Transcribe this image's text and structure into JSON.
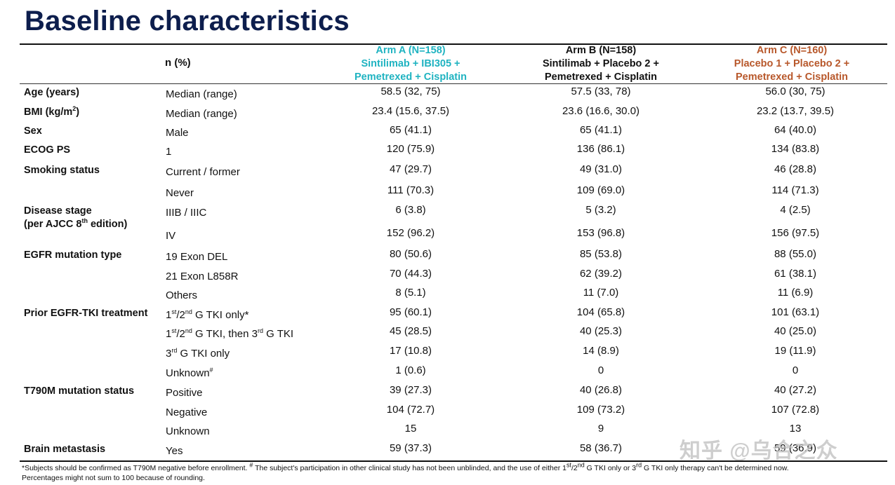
{
  "title": "Baseline characteristics",
  "header": {
    "n_pct": "n (%)",
    "arm_a": {
      "line1": "Arm A (N=158)",
      "line2": "Sintilimab + IBI305 +",
      "line3": "Pemetrexed + Cisplatin",
      "color": "#1fb3c1"
    },
    "arm_b": {
      "line1": "Arm B (N=158)",
      "line2": "Sintilimab + Placebo 2 +",
      "line3": "Pemetrexed + Cisplatin",
      "color": "#111111"
    },
    "arm_c": {
      "line1": "Arm C (N=160)",
      "line2": "Placebo 1 + Placebo 2 +",
      "line3": "Pemetrexed + Cisplatin",
      "color": "#b8582b"
    }
  },
  "rows": [
    {
      "label": "Age (years)",
      "sub": "Median (range)",
      "a": "58.5 (32, 75)",
      "b": "57.5 (33, 78)",
      "c": "56.0 (30, 75)"
    },
    {
      "label_pre": "BMI (kg/m",
      "label_sup": "2",
      "label_post": ")",
      "sub": "Median (range)",
      "a": "23.4 (15.6, 37.5)",
      "b": "23.6 (16.6, 30.0)",
      "c": "23.2 (13.7, 39.5)"
    },
    {
      "label": "Sex",
      "sub": "Male",
      "a": "65 (41.1)",
      "b": "65 (41.1)",
      "c": "64 (40.0)"
    },
    {
      "label": "ECOG PS",
      "sub": "1",
      "a": "120 (75.9)",
      "b": "136 (86.1)",
      "c": "134 (83.8)"
    },
    {
      "label": "Smoking status",
      "sub": "Current / former",
      "a": "47 (29.7)",
      "b": "49 (31.0)",
      "c": "46 (28.8)"
    },
    {
      "sub": "Never",
      "a": "111 (70.3)",
      "b": "109 (69.0)",
      "c": "114 (71.3)"
    },
    {
      "label": "Disease stage",
      "label2_pre": "(per AJCC 8",
      "label2_sup": "th",
      "label2_post": " edition)",
      "sub": "IIIB / IIIC",
      "a": "6 (3.8)",
      "b": "5 (3.2)",
      "c": "4 (2.5)"
    },
    {
      "sub": "IV",
      "a": "152 (96.2)",
      "b": "153 (96.8)",
      "c": "156 (97.5)"
    },
    {
      "label": "EGFR mutation type",
      "sub": "19 Exon DEL",
      "a": "80 (50.6)",
      "b": "85 (53.8)",
      "c": "88 (55.0)"
    },
    {
      "sub": "21 Exon L858R",
      "a": "70 (44.3)",
      "b": "62 (39.2)",
      "c": "61 (38.1)"
    },
    {
      "sub": "Others",
      "a": "8 (5.1)",
      "b": "11 (7.0)",
      "c": "11 (6.9)"
    },
    {
      "label": "Prior EGFR-TKI treatment",
      "sub_p1": "1",
      "sub_s1": "st",
      "sub_p2": "/2",
      "sub_s2": "nd",
      "sub_p3": " G TKI only*",
      "a": "95 (60.1)",
      "b": "104 (65.8)",
      "c": "101 (63.1)"
    },
    {
      "sub_p1": "1",
      "sub_s1": "st",
      "sub_p2": "/2",
      "sub_s2": "nd",
      "sub_p3": " G TKI, then 3",
      "sub_s3": "rd",
      "sub_p4": " G TKI",
      "a": "45 (28.5)",
      "b": "40 (25.3)",
      "c": "40 (25.0)"
    },
    {
      "sub_p1": "3",
      "sub_s1": "rd",
      "sub_p2": " G TKI only",
      "a": "17 (10.8)",
      "b": "14 (8.9)",
      "c": "19 (11.9)"
    },
    {
      "sub_p1": "Unknown",
      "sub_s1": "#",
      "a": "1 (0.6)",
      "b": "0",
      "c": "0"
    },
    {
      "label": "T790M mutation status",
      "sub": "Positive",
      "a": "39 (27.3)",
      "b": "40 (26.8)",
      "c": "40 (27.2)"
    },
    {
      "sub": "Negative",
      "a": "104 (72.7)",
      "b": "109 (73.2)",
      "c": "107 (72.8)"
    },
    {
      "sub": "Unknown",
      "a": "15",
      "b": "9",
      "c": "13"
    },
    {
      "label": "Brain metastasis",
      "sub": "Yes",
      "a": "59 (37.3)",
      "b": "58 (36.7)",
      "c": "59 (36.9)"
    }
  ],
  "footnote": {
    "p1": "*Subjects should be confirmed as T790M negative before enrollment. ",
    "s1": "#",
    "p2": " The subject's participation in other clinical study has not been unblinded, and the use of either 1",
    "s2": "st",
    "p3": "/2",
    "s3": "nd",
    "p4": " G TKI only or 3",
    "s4": "rd",
    "p5": " G TKI only therapy can't be determined now.",
    "line2": "Percentages might not sum to 100 because of rounding."
  },
  "watermark": "知乎 @乌合之众"
}
